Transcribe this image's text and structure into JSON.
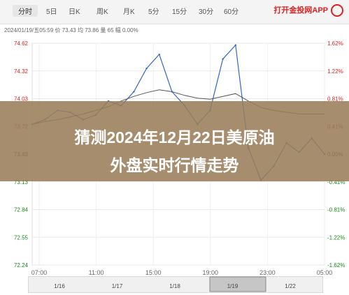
{
  "tabs": {
    "items": [
      {
        "label": "分时",
        "active": true
      },
      {
        "label": "5日"
      },
      {
        "label": "日K"
      },
      {
        "label": "周K"
      },
      {
        "label": "月K"
      },
      {
        "label": "5分"
      },
      {
        "label": "15分"
      },
      {
        "label": "30分"
      },
      {
        "label": "60分"
      }
    ],
    "app_badge": "打开金投网APP",
    "app_icon": "gold-app-logo-icon"
  },
  "info": {
    "text": "2024/01/19/五05:59  价 73.43  均 73.86  量 65  幅 0.00%"
  },
  "headline": {
    "line1": "猜测2024年12月22日美原油",
    "line2": "外盘实时行情走势"
  },
  "colors": {
    "price_line": "#2f6ac2",
    "average_line": "#555555",
    "up_text": "#e02020",
    "down_text": "#1a8a1a",
    "overlay": "#997d5a"
  },
  "chart_data": {
    "type": "line",
    "title": "",
    "xlabel": "",
    "ylabel": "",
    "x_ticks": [
      "07:00",
      "11:00",
      "15:00",
      "19:00",
      "23:00",
      "05:00"
    ],
    "y_ticks": [
      "74.62",
      "74.32",
      "74.03",
      "73.72",
      "73.43",
      "73.13",
      "72.84",
      "72.55",
      "72.24"
    ],
    "y_pct_ticks": [
      "1.62%",
      "1.22%",
      "0.81%",
      "0.41%",
      "0.00%",
      "-0.41%",
      "-0.81%",
      "-1.22%",
      "-1.62%"
    ],
    "ylim": [
      72.24,
      74.62
    ],
    "y_reference": 73.43,
    "x": [
      "07:00",
      "08:00",
      "09:00",
      "10:00",
      "11:00",
      "12:00",
      "13:00",
      "14:00",
      "15:00",
      "16:00",
      "17:00",
      "18:00",
      "19:00",
      "20:00",
      "21:00",
      "22:00",
      "23:00",
      "00:00",
      "01:00",
      "02:00",
      "03:00",
      "04:00",
      "05:00",
      "05:59"
    ],
    "series": [
      {
        "values": [
          73.75,
          73.8,
          73.9,
          73.88,
          73.8,
          73.85,
          74.0,
          73.95,
          74.1,
          74.35,
          74.5,
          74.1,
          73.95,
          73.75,
          73.9,
          74.45,
          74.6,
          73.5,
          73.15,
          73.3,
          73.55,
          73.45,
          73.6,
          73.43
        ]
      },
      {
        "values": [
          73.75,
          73.78,
          73.8,
          73.83,
          73.86,
          73.9,
          73.94,
          74.0,
          74.05,
          74.09,
          74.12,
          74.1,
          74.06,
          74.03,
          74.02,
          74.05,
          74.08,
          74.0,
          73.93,
          73.9,
          73.88,
          73.86,
          73.86,
          73.86
        ]
      }
    ],
    "navigator_labels": [
      "1/16",
      "1/17",
      "1/18",
      "1/19",
      "1/22"
    ],
    "grid": true,
    "legend": "none"
  }
}
